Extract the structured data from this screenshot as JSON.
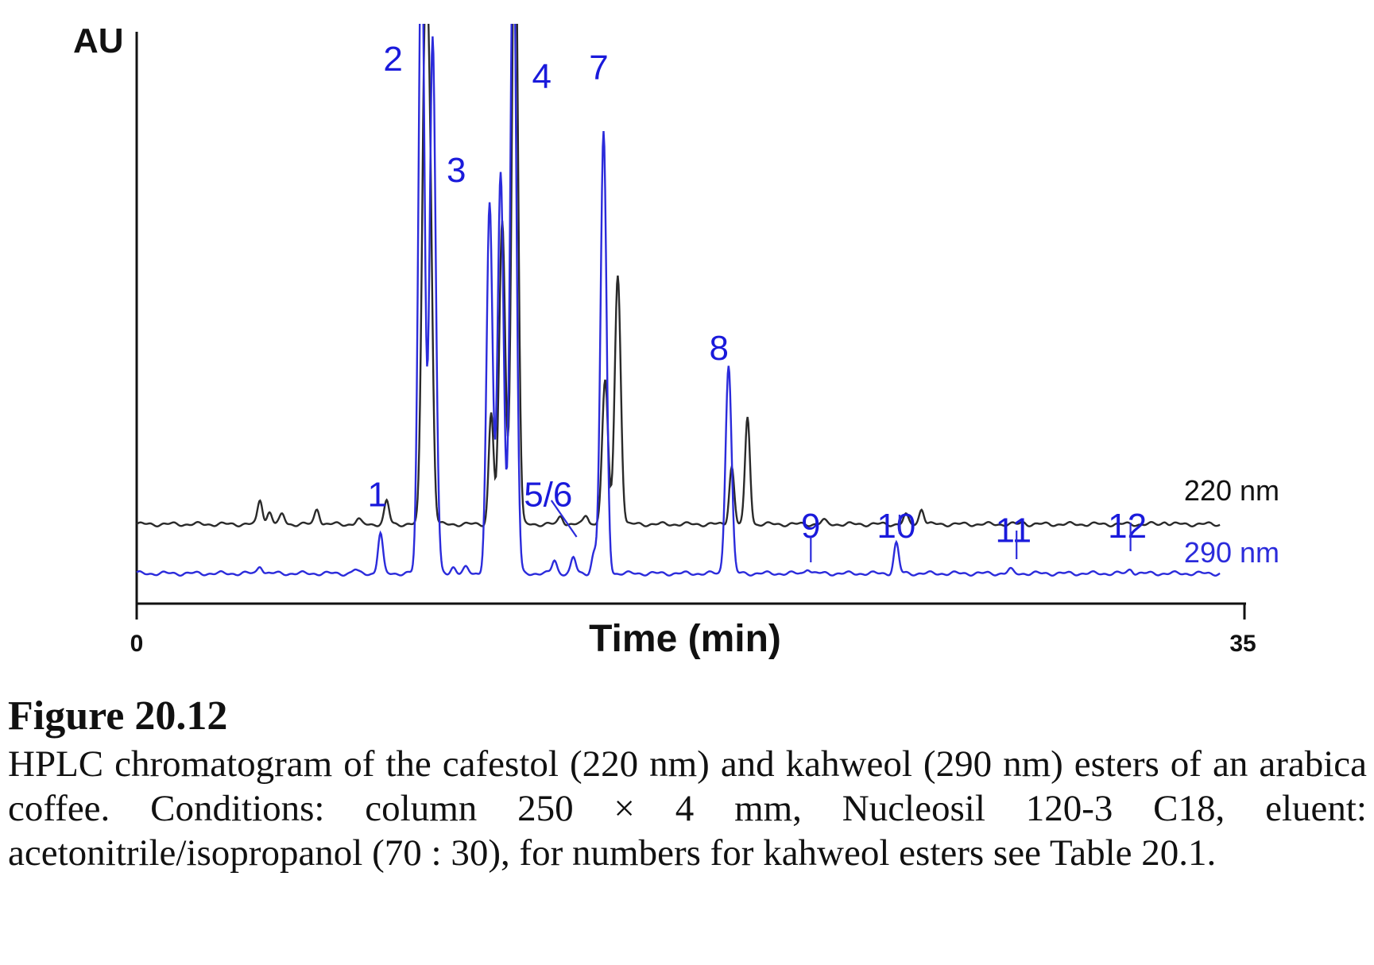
{
  "chart_data": {
    "type": "line",
    "ylabel": "AU",
    "xlabel": "Time (min)",
    "xlim": [
      0,
      35
    ],
    "x_ticks": [
      "0",
      "35"
    ],
    "series": [
      {
        "name": "220 nm",
        "color": "#2a2a2a",
        "baseline": 0.0,
        "peaks": [
          {
            "t": 3.9,
            "h": 0.055
          },
          {
            "t": 4.2,
            "h": 0.028
          },
          {
            "t": 4.6,
            "h": 0.022
          },
          {
            "t": 5.7,
            "h": 0.035
          },
          {
            "t": 7.0,
            "h": 0.01
          },
          {
            "t": 7.9,
            "h": 0.052
          },
          {
            "t": 9.1,
            "h": 0.95
          },
          {
            "t": 9.25,
            "h": 0.75
          },
          {
            "t": 11.2,
            "h": 0.25
          },
          {
            "t": 11.55,
            "h": 0.68
          },
          {
            "t": 11.95,
            "h": 1.5
          },
          {
            "t": 13.4,
            "h": 0.018
          },
          {
            "t": 14.2,
            "h": 0.02
          },
          {
            "t": 14.8,
            "h": 0.32
          },
          {
            "t": 15.2,
            "h": 0.56
          },
          {
            "t": 18.8,
            "h": 0.13
          },
          {
            "t": 19.3,
            "h": 0.24
          },
          {
            "t": 21.7,
            "h": 0.008
          },
          {
            "t": 24.3,
            "h": 0.02
          },
          {
            "t": 24.8,
            "h": 0.035
          },
          {
            "t": 28.0,
            "h": 0.004
          },
          {
            "t": 32.5,
            "h": 0.006
          }
        ]
      },
      {
        "name": "290 nm",
        "color": "#2b2bdb",
        "baseline": 0.0,
        "peaks": [
          {
            "t": 3.9,
            "h": 0.018
          },
          {
            "t": 6.9,
            "h": 0.008
          },
          {
            "t": 7.7,
            "h": 0.09
          },
          {
            "t": 9.0,
            "h": 1.5
          },
          {
            "t": 9.35,
            "h": 1.2
          },
          {
            "t": 9.5,
            "h": 0.035
          },
          {
            "t": 10.0,
            "h": 0.015
          },
          {
            "t": 10.4,
            "h": 0.012
          },
          {
            "t": 11.15,
            "h": 0.83
          },
          {
            "t": 11.5,
            "h": 0.9
          },
          {
            "t": 11.9,
            "h": 1.5
          },
          {
            "t": 13.2,
            "h": 0.03
          },
          {
            "t": 13.8,
            "h": 0.035
          },
          {
            "t": 14.45,
            "h": 0.045
          },
          {
            "t": 14.75,
            "h": 0.99
          },
          {
            "t": 18.7,
            "h": 0.47
          },
          {
            "t": 21.2,
            "h": 0.012
          },
          {
            "t": 24.0,
            "h": 0.068
          },
          {
            "t": 27.6,
            "h": 0.008
          },
          {
            "t": 31.4,
            "h": 0.01
          }
        ]
      }
    ],
    "annotations": [
      {
        "label": "1",
        "t": 7.6,
        "y": 0.14
      },
      {
        "label": "2",
        "t": 8.1,
        "y": 1.12
      },
      {
        "label": "3",
        "t": 10.1,
        "y": 0.87
      },
      {
        "label": "4",
        "t": 12.8,
        "y": 1.08
      },
      {
        "label": "5/6",
        "t": 13.0,
        "y": 0.14
      },
      {
        "label": "7",
        "t": 14.6,
        "y": 1.1
      },
      {
        "label": "8",
        "t": 18.4,
        "y": 0.47
      },
      {
        "label": "9",
        "t": 21.3,
        "y": 0.07
      },
      {
        "label": "10",
        "t": 24.0,
        "y": 0.07
      },
      {
        "label": "11",
        "t": 27.7,
        "y": 0.06
      },
      {
        "label": "12",
        "t": 31.3,
        "y": 0.07
      }
    ]
  },
  "caption": {
    "title": "Figure 20.12",
    "text": "HPLC chromatogram of the cafestol (220 nm) and kahweol (290 nm) esters of an arabica coffee. Conditions: column 250 × 4 mm, Nucleosil 120-3 C18, eluent: acetonitrile/isopropanol (70 : 30), for numbers for kahweol esters see Table 20.1."
  }
}
